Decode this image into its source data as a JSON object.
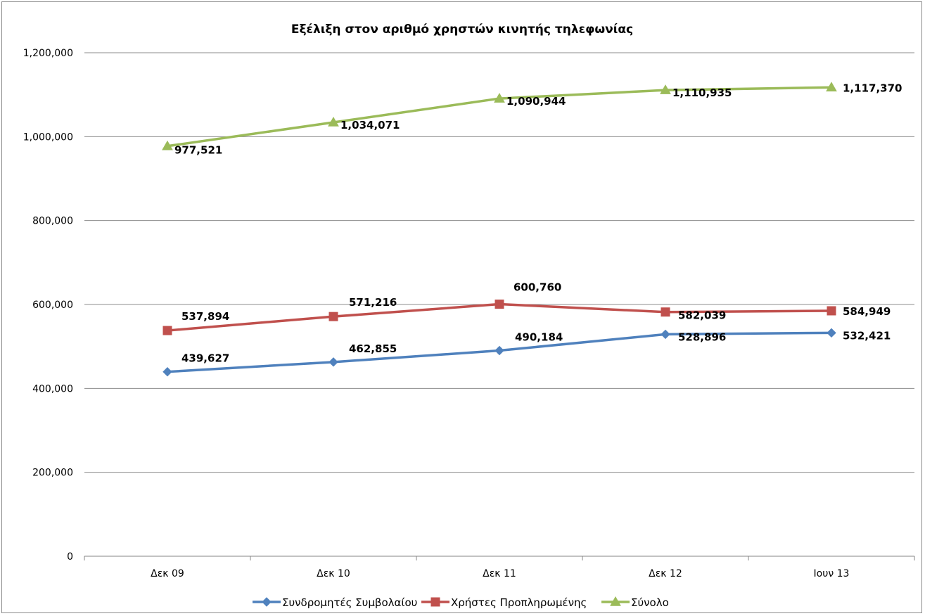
{
  "chart_data": {
    "type": "line",
    "title": "Εξέλιξη στον αριθμό χρηστών κινητής τηλεφωνίας",
    "xlabel": "",
    "ylabel": "",
    "categories": [
      "Δεκ 09",
      "Δεκ 10",
      "Δεκ 11",
      "Δεκ 12",
      "Ιουν 13"
    ],
    "ylim": [
      0,
      1200000
    ],
    "yticks": [
      0,
      200000,
      400000,
      600000,
      800000,
      1000000,
      1200000
    ],
    "ytick_labels": [
      "0",
      "200,000",
      "400,000",
      "600,000",
      "800,000",
      "1,000,000",
      "1,200,000"
    ],
    "grid": true,
    "legend_position": "bottom",
    "series": [
      {
        "name": "Συνδρομητές Συμβολαίου",
        "color": "#4f81bd",
        "marker": "diamond",
        "values": [
          439627,
          462855,
          490184,
          528896,
          532421
        ],
        "labels": [
          "439,627",
          "462,855",
          "490,184",
          "528,896",
          "532,421"
        ]
      },
      {
        "name": "Χρήστες Προπληρωμένης",
        "color": "#c0504d",
        "marker": "square",
        "values": [
          537894,
          571216,
          600760,
          582039,
          584949
        ],
        "labels": [
          "537,894",
          "571,216",
          "600,760",
          "582,039",
          "584,949"
        ]
      },
      {
        "name": "Σύνολο",
        "color": "#9bbb59",
        "marker": "triangle",
        "values": [
          977521,
          1034071,
          1090944,
          1110935,
          1117370
        ],
        "labels": [
          "977,521",
          "1,034,071",
          "1,090,944",
          "1,110,935",
          "1,117,370"
        ]
      }
    ]
  }
}
